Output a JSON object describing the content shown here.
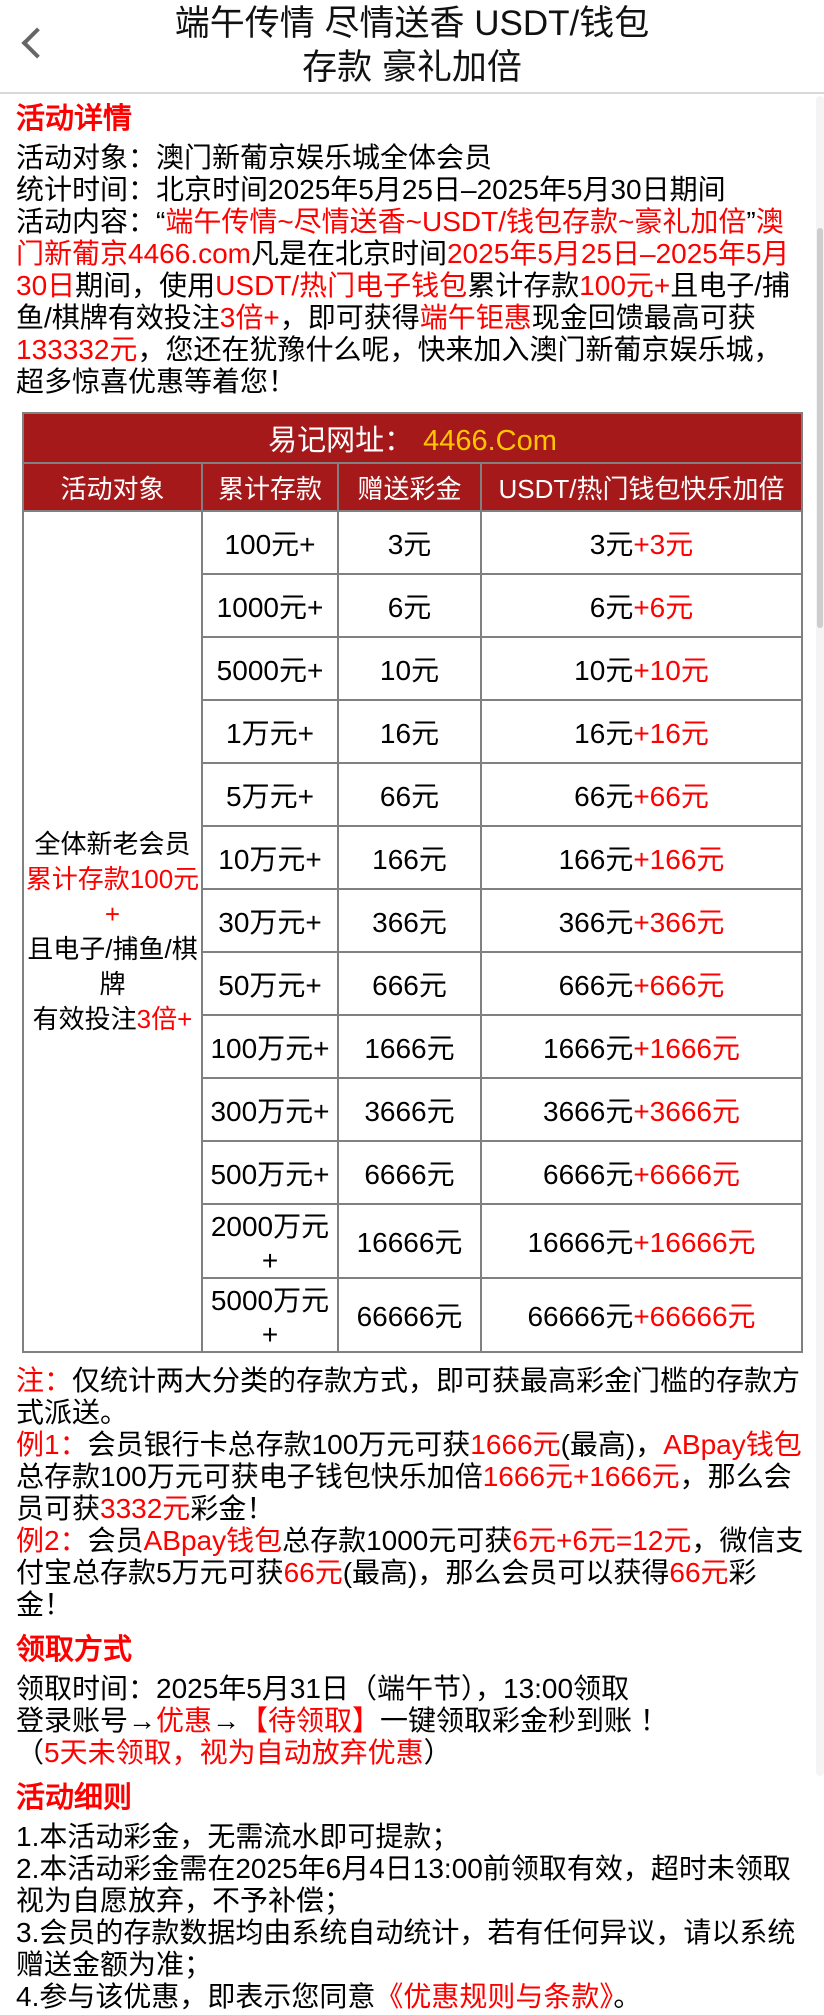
{
  "header": {
    "title_line1": "端午传情 尽情送香 USDT/钱包",
    "title_line2": "存款 豪礼加倍",
    "back_icon": "chevron-left"
  },
  "colors": {
    "accent_red": "#ff0000",
    "table_band_red": "#a6191b",
    "url_gold": "#ffc600",
    "table_border_gray": "#808080"
  },
  "details": {
    "heading": "活动详情",
    "target_line": [
      {
        "c": "blk",
        "t": "活动对象：澳门新葡京娱乐城全体会员"
      }
    ],
    "time_line": [
      {
        "c": "blk",
        "t": "统计时间：北京时间2025年5月25日–2025年5月30日期间"
      }
    ],
    "content_para": [
      {
        "c": "blk",
        "t": "活动内容：“"
      },
      {
        "c": "red",
        "t": "端午传情~尽情送香~USDT/钱包存款~豪礼加倍"
      },
      {
        "c": "blk",
        "t": "”"
      },
      {
        "c": "red",
        "t": "澳门新葡京4466.com"
      },
      {
        "c": "blk",
        "t": "凡是在北京时间"
      },
      {
        "c": "red",
        "t": "2025年5月25日–2025年5月30日"
      },
      {
        "c": "blk",
        "t": "期间，使用"
      },
      {
        "c": "red",
        "t": "USDT/热门电子钱包"
      },
      {
        "c": "blk",
        "t": "累计存款"
      },
      {
        "c": "red",
        "t": "100元+"
      },
      {
        "c": "blk",
        "t": "且电子/捕鱼/棋牌有效投注"
      },
      {
        "c": "red",
        "t": "3倍+"
      },
      {
        "c": "blk",
        "t": "，即可获得"
      },
      {
        "c": "red",
        "t": "端午钜惠"
      },
      {
        "c": "blk",
        "t": "现金回馈最高可获"
      },
      {
        "c": "red",
        "t": "133332元"
      },
      {
        "c": "blk",
        "t": "，您还在犹豫什么呢，快来加入澳门新葡京娱乐城，超多惊喜优惠等着您！"
      }
    ]
  },
  "table": {
    "band_label": "易记网址：",
    "band_url": "4466.Com",
    "headers": [
      "活动对象",
      "累计存款",
      "赠送彩金",
      "USDT/热门钱包快乐加倍"
    ],
    "target_lines": [
      [
        {
          "c": "blk",
          "t": "全体新老会员"
        }
      ],
      [
        {
          "c": "red",
          "t": "累计存款100元+"
        }
      ],
      [
        {
          "c": "blk",
          "t": "且电子/捕鱼/棋牌"
        }
      ],
      [
        {
          "c": "blk",
          "t": "有效投注"
        },
        {
          "c": "red",
          "t": "3倍+"
        }
      ]
    ],
    "rows": [
      {
        "deposit": "100元+",
        "bonus": "3元",
        "combo_base": "3元",
        "combo_extra": "+3元"
      },
      {
        "deposit": "1000元+",
        "bonus": "6元",
        "combo_base": "6元",
        "combo_extra": "+6元"
      },
      {
        "deposit": "5000元+",
        "bonus": "10元",
        "combo_base": "10元",
        "combo_extra": "+10元"
      },
      {
        "deposit": "1万元+",
        "bonus": "16元",
        "combo_base": "16元",
        "combo_extra": "+16元"
      },
      {
        "deposit": "5万元+",
        "bonus": "66元",
        "combo_base": "66元",
        "combo_extra": "+66元"
      },
      {
        "deposit": "10万元+",
        "bonus": "166元",
        "combo_base": "166元",
        "combo_extra": "+166元"
      },
      {
        "deposit": "30万元+",
        "bonus": "366元",
        "combo_base": "366元",
        "combo_extra": "+366元"
      },
      {
        "deposit": "50万元+",
        "bonus": "666元",
        "combo_base": "666元",
        "combo_extra": "+666元"
      },
      {
        "deposit": "100万元+",
        "bonus": "1666元",
        "combo_base": "1666元",
        "combo_extra": "+1666元"
      },
      {
        "deposit": "300万元+",
        "bonus": "3666元",
        "combo_base": "3666元",
        "combo_extra": "+3666元"
      },
      {
        "deposit": "500万元+",
        "bonus": "6666元",
        "combo_base": "6666元",
        "combo_extra": "+6666元"
      },
      {
        "deposit": "2000万元+",
        "bonus": "16666元",
        "combo_base": "16666元",
        "combo_extra": "+16666元"
      },
      {
        "deposit": "5000万元+",
        "bonus": "66666元",
        "combo_base": "66666元",
        "combo_extra": "+66666元"
      }
    ]
  },
  "notes": {
    "note": [
      {
        "c": "red",
        "t": "注："
      },
      {
        "c": "blk",
        "t": "仅统计两大分类的存款方式，即可获最高彩金门槛的存款方式派送。"
      }
    ],
    "example1": [
      {
        "c": "red",
        "t": "例1："
      },
      {
        "c": "blk",
        "t": "会员银行卡总存款100万元可获"
      },
      {
        "c": "red",
        "t": "1666元"
      },
      {
        "c": "blk",
        "t": "(最高)，"
      },
      {
        "c": "red",
        "t": "ABpay钱包"
      },
      {
        "c": "blk",
        "t": "总存款100万元可获电子钱包快乐加倍"
      },
      {
        "c": "red",
        "t": "1666元+1666元"
      },
      {
        "c": "blk",
        "t": "，那么会员可获"
      },
      {
        "c": "red",
        "t": "3332元"
      },
      {
        "c": "blk",
        "t": "彩金！"
      }
    ],
    "example2": [
      {
        "c": "red",
        "t": "例2："
      },
      {
        "c": "blk",
        "t": "会员"
      },
      {
        "c": "red",
        "t": "ABpay钱包"
      },
      {
        "c": "blk",
        "t": "总存款1000元可获"
      },
      {
        "c": "red",
        "t": "6元+6元=12元"
      },
      {
        "c": "blk",
        "t": "，微信支付宝总存款5万元可获"
      },
      {
        "c": "red",
        "t": "66元"
      },
      {
        "c": "blk",
        "t": "(最高)，那么会员可以获得"
      },
      {
        "c": "red",
        "t": "66元"
      },
      {
        "c": "blk",
        "t": "彩金！"
      }
    ]
  },
  "claim": {
    "heading": "领取方式",
    "time_line": [
      {
        "c": "blk",
        "t": "领取时间：2025年5月31日（端午节），13:00领取"
      }
    ],
    "login_line": [
      {
        "c": "blk",
        "t": "登录账号→"
      },
      {
        "c": "red",
        "t": "优惠"
      },
      {
        "c": "blk",
        "t": "→"
      },
      {
        "c": "red",
        "t": "【待领取】"
      },
      {
        "c": "blk",
        "t": "一键领取彩金秒到账 ！"
      }
    ],
    "expire_line": [
      {
        "c": "blk",
        "t": "（"
      },
      {
        "c": "red",
        "t": "5天未领取，视为自动放弃优惠"
      },
      {
        "c": "blk",
        "t": "）"
      }
    ]
  },
  "rules": {
    "heading": "活动细则",
    "items": [
      [
        {
          "c": "blk",
          "t": "1.本活动彩金，无需流水即可提款；"
        }
      ],
      [
        {
          "c": "blk",
          "t": "2.本活动彩金需在2025年6月4日13:00前领取有效，超时未领取视为自愿放弃，不予补偿；"
        }
      ],
      [
        {
          "c": "blk",
          "t": "3.会员的存款数据均由系统自动统计，若有任何异议，请以系统赠送金额为准；"
        }
      ],
      [
        {
          "c": "blk",
          "t": "4.参与该优惠，即表示您同意"
        },
        {
          "c": "red",
          "t": "《优惠规则与条款》",
          "link": true,
          "name": "rules-terms-link"
        },
        {
          "c": "blk",
          "t": "。"
        }
      ]
    ]
  }
}
